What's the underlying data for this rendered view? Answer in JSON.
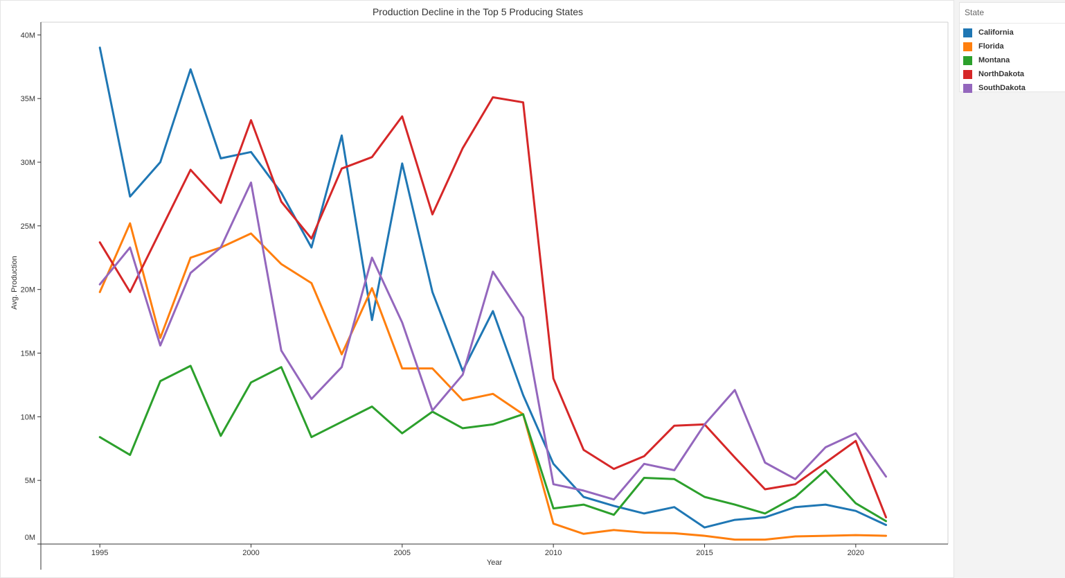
{
  "chart_data": {
    "type": "line",
    "title": "Production Decline in the Top 5 Producing States",
    "xlabel": "Year",
    "ylabel": "Avg. Production",
    "x": [
      1995,
      1996,
      1997,
      1998,
      1999,
      2000,
      2001,
      2002,
      2003,
      2004,
      2005,
      2006,
      2007,
      2008,
      2009,
      2010,
      2011,
      2012,
      2013,
      2014,
      2015,
      2016,
      2017,
      2018,
      2019,
      2020,
      2021
    ],
    "x_ticks": [
      "1995",
      "2000",
      "2005",
      "2010",
      "2015",
      "2020"
    ],
    "y_ticks": [
      "0M",
      "5M",
      "10M",
      "15M",
      "20M",
      "25M",
      "30M",
      "35M",
      "40M"
    ],
    "ylim": [
      0,
      41000000
    ],
    "xlim": [
      1993.05,
      2023.05
    ],
    "grid": false,
    "legend_position": "right",
    "legend_title": "State",
    "series": [
      {
        "name": "California",
        "color": "#1f77b4",
        "values": [
          39000000,
          27300000,
          30000000,
          37300000,
          30300000,
          30800000,
          27600000,
          23300000,
          32100000,
          17600000,
          29900000,
          19800000,
          13600000,
          18300000,
          11700000,
          6300000,
          3700000,
          3000000,
          2400000,
          2900000,
          1300000,
          1900000,
          2100000,
          2900000,
          3100000,
          2600000,
          1500000
        ]
      },
      {
        "name": "Florida",
        "color": "#ff7f0e",
        "values": [
          19800000,
          25200000,
          16200000,
          22500000,
          23300000,
          24400000,
          22000000,
          20500000,
          14900000,
          20100000,
          13800000,
          13800000,
          11300000,
          11800000,
          10200000,
          1600000,
          800000,
          1100000,
          900000,
          850000,
          650000,
          350000,
          350000,
          600000,
          650000,
          700000,
          650000
        ]
      },
      {
        "name": "Montana",
        "color": "#2ca02c",
        "values": [
          8400000,
          7000000,
          12800000,
          14000000,
          8500000,
          12700000,
          13900000,
          8400000,
          9600000,
          10800000,
          8700000,
          10400000,
          9100000,
          9400000,
          10200000,
          2800000,
          3100000,
          2300000,
          5200000,
          5100000,
          3700000,
          3100000,
          2400000,
          3700000,
          5800000,
          3200000,
          1800000
        ]
      },
      {
        "name": "NorthDakota",
        "color": "#d62728",
        "values": [
          23700000,
          19800000,
          24600000,
          29400000,
          26800000,
          33300000,
          26900000,
          24000000,
          29500000,
          30400000,
          33600000,
          25900000,
          31100000,
          35100000,
          34700000,
          13000000,
          7400000,
          5900000,
          6900000,
          9300000,
          9400000,
          6800000,
          4300000,
          4700000,
          6400000,
          8100000,
          2100000
        ]
      },
      {
        "name": "SouthDakota",
        "color": "#9467bd",
        "values": [
          20400000,
          23300000,
          15600000,
          21300000,
          23300000,
          28400000,
          15200000,
          11400000,
          13900000,
          22500000,
          17400000,
          10500000,
          13300000,
          21400000,
          17800000,
          4700000,
          4200000,
          3500000,
          6300000,
          5800000,
          9400000,
          12100000,
          6400000,
          5100000,
          7600000,
          8700000,
          5300000
        ]
      }
    ]
  }
}
